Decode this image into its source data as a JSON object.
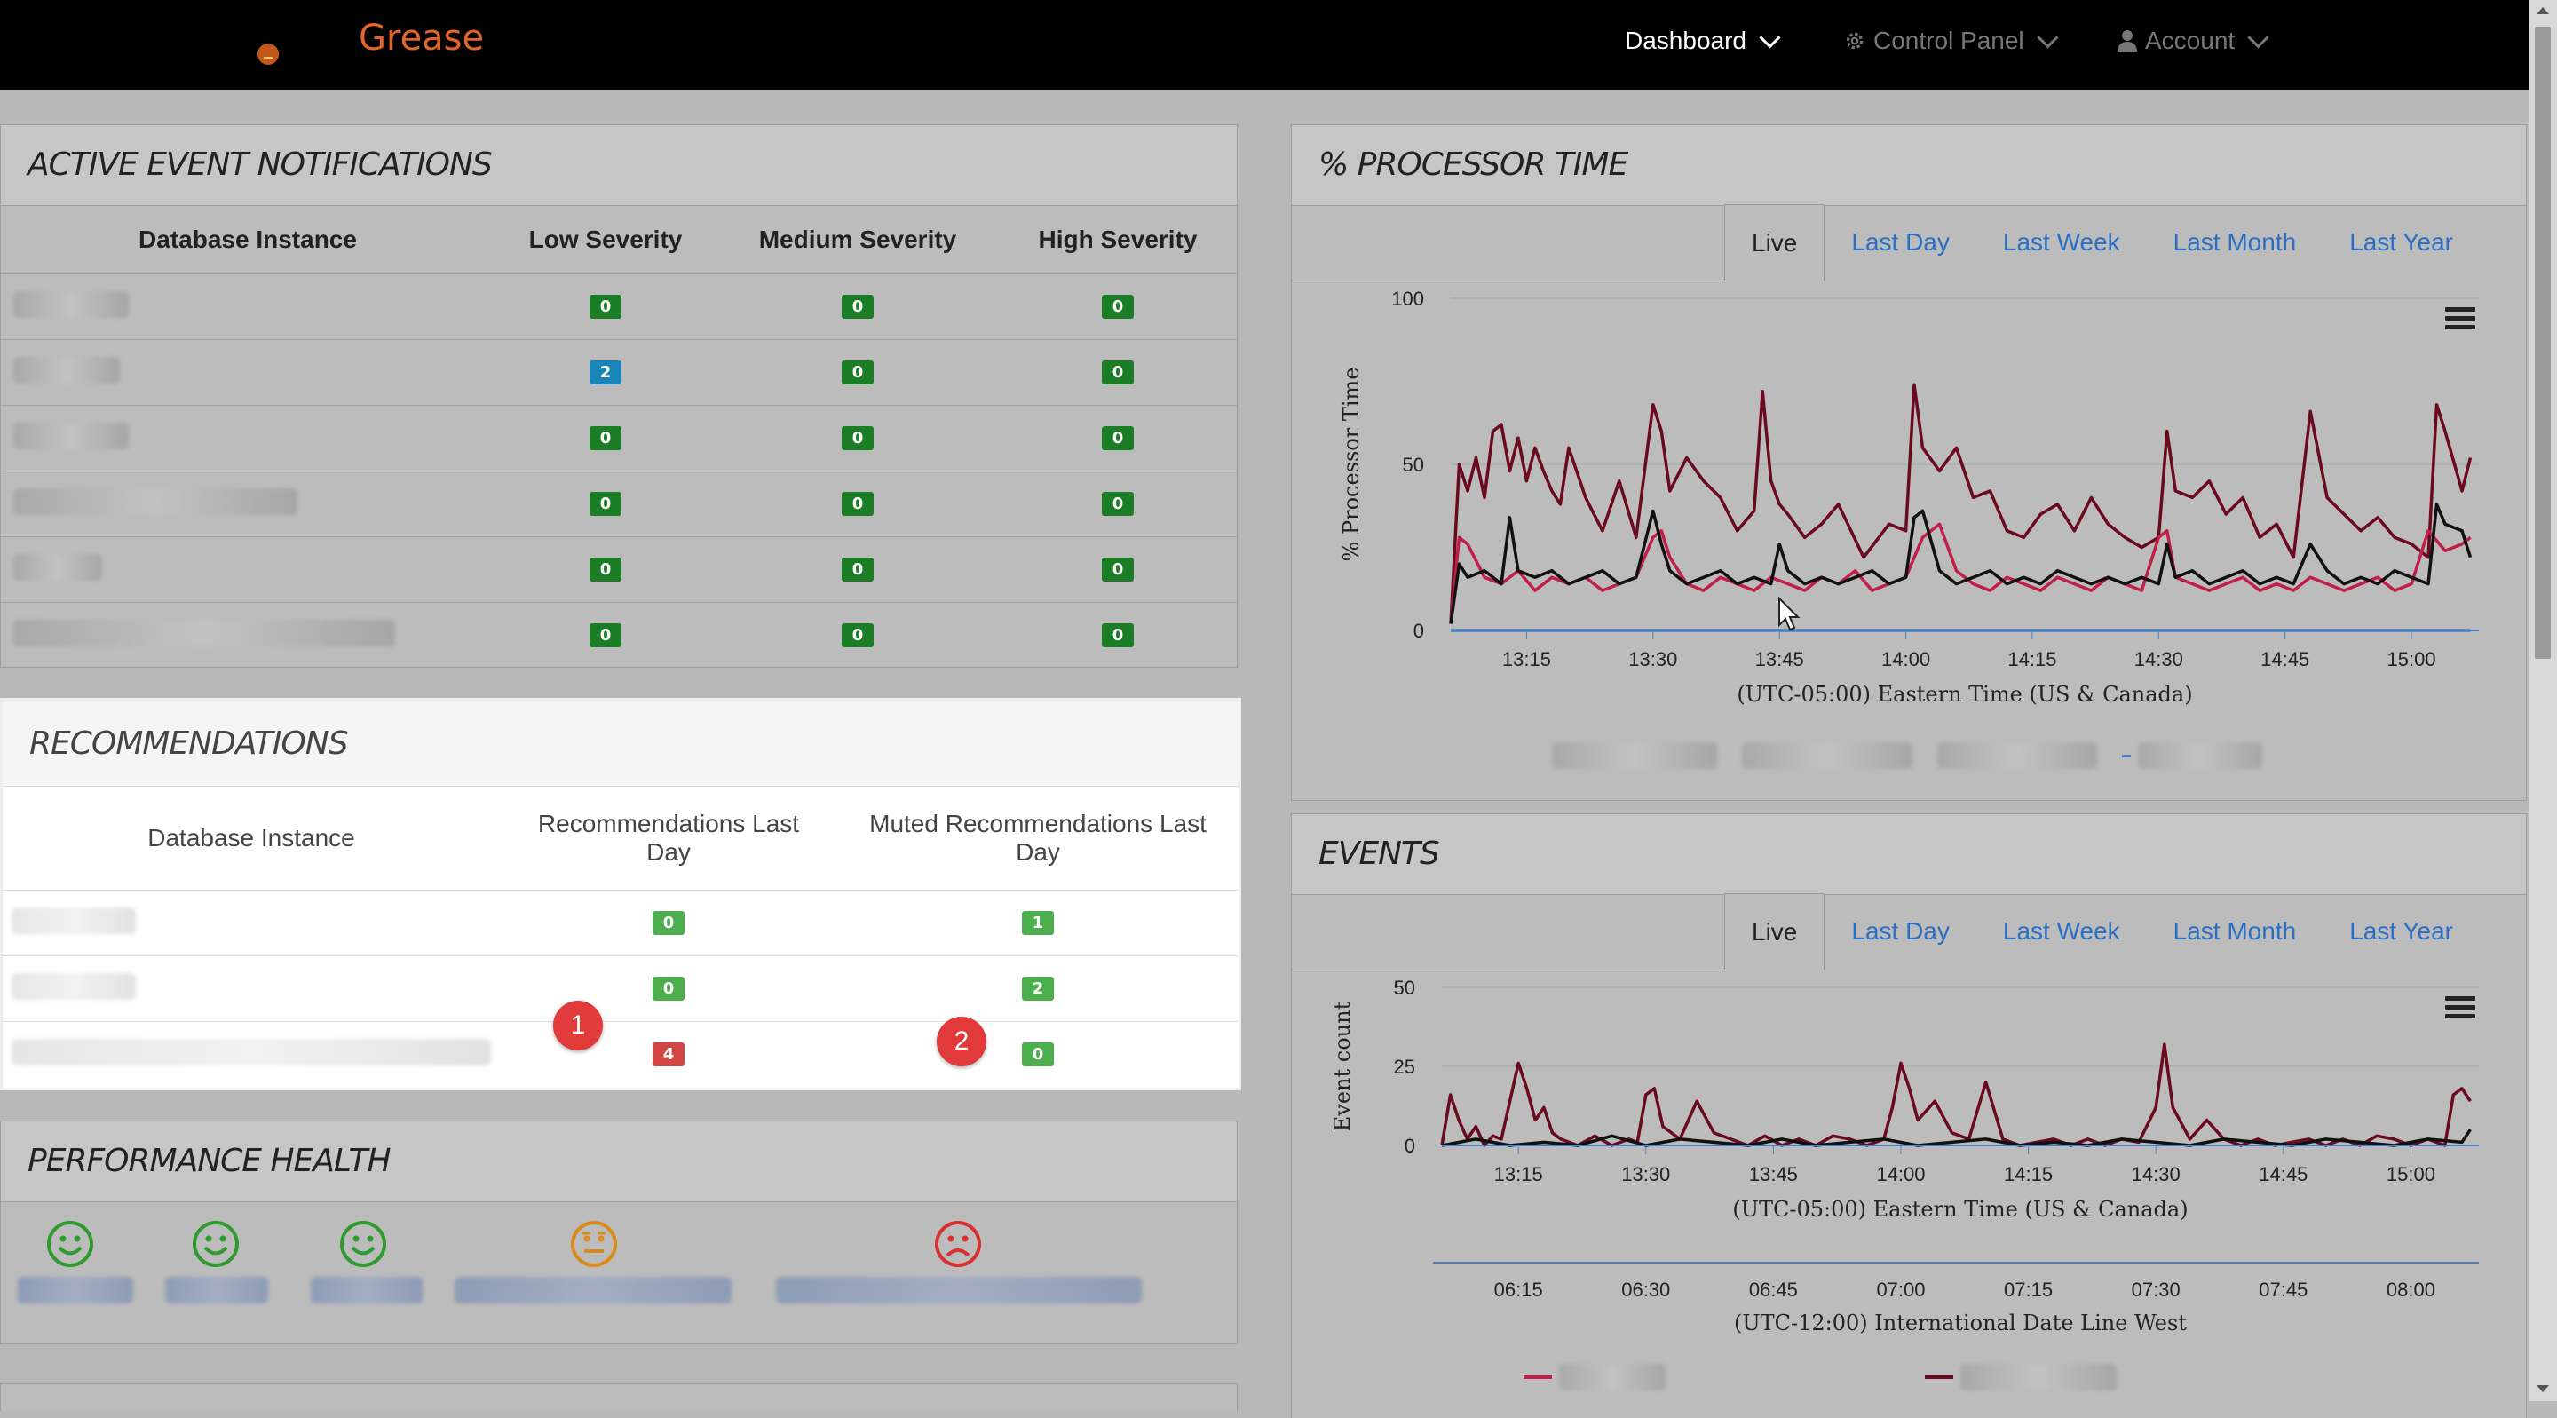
{
  "nav": {
    "brand": "Grease",
    "dashboard": "Dashboard",
    "control_panel": "Control Panel",
    "account": "Account"
  },
  "active_events": {
    "title": "ACTIVE EVENT NOTIFICATIONS",
    "columns": [
      "Database Instance",
      "Low Severity",
      "Medium Severity",
      "High Severity"
    ],
    "rows": [
      {
        "low": "0",
        "medium": "0",
        "high": "0",
        "low_color": "#1b7d25"
      },
      {
        "low": "2",
        "medium": "0",
        "high": "0",
        "low_color": "#1a85b8"
      },
      {
        "low": "0",
        "medium": "0",
        "high": "0",
        "low_color": "#1b7d25"
      },
      {
        "low": "0",
        "medium": "0",
        "high": "0",
        "low_color": "#1b7d25"
      },
      {
        "low": "0",
        "medium": "0",
        "high": "0",
        "low_color": "#1b7d25"
      },
      {
        "low": "0",
        "medium": "0",
        "high": "0",
        "low_color": "#1b7d25"
      }
    ]
  },
  "recommendations": {
    "title": "RECOMMENDATIONS",
    "columns": [
      "Database Instance",
      "Recommendations Last Day",
      "Muted Recommendations Last Day"
    ],
    "rows": [
      {
        "recs": "0",
        "muted": "1",
        "recs_color": "#4cae4c"
      },
      {
        "recs": "0",
        "muted": "2",
        "recs_color": "#4cae4c"
      },
      {
        "recs": "4",
        "muted": "0",
        "recs_color": "#d24545"
      }
    ],
    "callouts": [
      "1",
      "2"
    ]
  },
  "performance_health": {
    "title": "PERFORMANCE HEALTH",
    "instances": [
      {
        "mood": "happy",
        "color": "#2f9a2f"
      },
      {
        "mood": "happy",
        "color": "#2f9a2f"
      },
      {
        "mood": "happy",
        "color": "#2f9a2f"
      },
      {
        "mood": "neutral",
        "color": "#d98a1c"
      },
      {
        "mood": "sad",
        "color": "#d63030"
      }
    ]
  },
  "processor": {
    "title": "% PROCESSOR TIME",
    "tabs": [
      "Live",
      "Last Day",
      "Last Week",
      "Last Month",
      "Last Year"
    ],
    "active_tab": "Live"
  },
  "events": {
    "title": "EVENTS",
    "tabs": [
      "Live",
      "Last Day",
      "Last Week",
      "Last Month",
      "Last Year"
    ],
    "active_tab": "Live"
  },
  "chart_data": [
    {
      "type": "line",
      "ylabel": "% Processor Time",
      "xlabel": "(UTC-05:00) Eastern Time (US & Canada)",
      "ylim": [
        0,
        100
      ],
      "yticks": [
        "0",
        "50",
        "100"
      ],
      "xlim": [
        "13:06",
        "15:08"
      ],
      "xticks": [
        "13:15",
        "13:30",
        "13:45",
        "14:00",
        "14:15",
        "14:30",
        "14:45",
        "15:00"
      ],
      "grid": true,
      "series": [
        {
          "color": "#6b0a1e",
          "x": [
            "13:06",
            "13:07",
            "13:08",
            "13:09",
            "13:10",
            "13:11",
            "13:12",
            "13:13",
            "13:14",
            "13:15",
            "13:16",
            "13:17",
            "13:18",
            "13:19",
            "13:20",
            "13:22",
            "13:24",
            "13:26",
            "13:28",
            "13:30",
            "13:31",
            "13:32",
            "13:34",
            "13:36",
            "13:38",
            "13:40",
            "13:42",
            "13:43",
            "13:44",
            "13:45",
            "13:46",
            "13:48",
            "13:50",
            "13:52",
            "13:55",
            "13:58",
            "14:00",
            "14:01",
            "14:02",
            "14:04",
            "14:06",
            "14:08",
            "14:10",
            "14:12",
            "14:14",
            "14:16",
            "14:18",
            "14:20",
            "14:22",
            "14:24",
            "14:26",
            "14:28",
            "14:30",
            "14:31",
            "14:32",
            "14:34",
            "14:36",
            "14:38",
            "14:40",
            "14:42",
            "14:44",
            "14:46",
            "14:48",
            "14:50",
            "14:52",
            "14:54",
            "14:56",
            "14:58",
            "15:00",
            "15:02",
            "15:03",
            "15:04",
            "15:06",
            "15:07"
          ],
          "y": [
            2,
            50,
            42,
            52,
            40,
            60,
            62,
            48,
            58,
            45,
            55,
            48,
            42,
            38,
            55,
            40,
            30,
            45,
            28,
            68,
            60,
            42,
            52,
            45,
            40,
            30,
            36,
            72,
            45,
            38,
            35,
            28,
            32,
            38,
            22,
            32,
            30,
            74,
            55,
            48,
            55,
            40,
            42,
            30,
            28,
            35,
            38,
            30,
            40,
            32,
            28,
            25,
            28,
            60,
            42,
            40,
            45,
            35,
            40,
            28,
            32,
            22,
            66,
            40,
            35,
            30,
            34,
            28,
            26,
            22,
            68,
            60,
            42,
            52
          ]
        },
        {
          "color": "#c01f48",
          "x": [
            "13:06",
            "13:07",
            "13:08",
            "13:10",
            "13:12",
            "13:14",
            "13:16",
            "13:18",
            "13:20",
            "13:22",
            "13:24",
            "13:26",
            "13:28",
            "13:30",
            "13:31",
            "13:32",
            "13:34",
            "13:36",
            "13:38",
            "13:40",
            "13:42",
            "13:44",
            "13:46",
            "13:48",
            "13:50",
            "13:52",
            "13:54",
            "13:56",
            "13:58",
            "14:00",
            "14:02",
            "14:04",
            "14:06",
            "14:08",
            "14:10",
            "14:12",
            "14:14",
            "14:16",
            "14:18",
            "14:20",
            "14:22",
            "14:24",
            "14:26",
            "14:28",
            "14:30",
            "14:31",
            "14:32",
            "14:34",
            "14:36",
            "14:38",
            "14:40",
            "14:42",
            "14:44",
            "14:46",
            "14:48",
            "14:50",
            "14:52",
            "14:54",
            "14:56",
            "14:58",
            "15:00",
            "15:02",
            "15:04",
            "15:06",
            "15:07"
          ],
          "y": [
            2,
            28,
            26,
            16,
            14,
            18,
            12,
            16,
            14,
            16,
            12,
            14,
            16,
            28,
            30,
            22,
            14,
            12,
            16,
            14,
            12,
            16,
            14,
            12,
            16,
            14,
            18,
            12,
            14,
            16,
            28,
            32,
            18,
            14,
            12,
            16,
            14,
            12,
            16,
            14,
            12,
            16,
            14,
            12,
            28,
            30,
            16,
            14,
            12,
            14,
            16,
            12,
            14,
            12,
            16,
            14,
            12,
            14,
            16,
            12,
            14,
            30,
            24,
            26,
            28
          ]
        },
        {
          "color": "#111111",
          "x": [
            "13:06",
            "13:07",
            "13:08",
            "13:10",
            "13:12",
            "13:13",
            "13:14",
            "13:16",
            "13:18",
            "13:20",
            "13:22",
            "13:24",
            "13:26",
            "13:28",
            "13:30",
            "13:31",
            "13:32",
            "13:34",
            "13:36",
            "13:38",
            "13:40",
            "13:42",
            "13:44",
            "13:45",
            "13:46",
            "13:48",
            "13:50",
            "13:52",
            "13:54",
            "13:56",
            "13:58",
            "14:00",
            "14:01",
            "14:02",
            "14:04",
            "14:06",
            "14:08",
            "14:10",
            "14:12",
            "14:14",
            "14:16",
            "14:18",
            "14:20",
            "14:22",
            "14:24",
            "14:26",
            "14:28",
            "14:30",
            "14:31",
            "14:32",
            "14:34",
            "14:36",
            "14:38",
            "14:40",
            "14:42",
            "14:44",
            "14:46",
            "14:48",
            "14:50",
            "14:52",
            "14:54",
            "14:56",
            "14:58",
            "15:00",
            "15:02",
            "15:03",
            "15:04",
            "15:06",
            "15:07"
          ],
          "y": [
            2,
            20,
            16,
            18,
            14,
            34,
            18,
            16,
            18,
            14,
            16,
            18,
            14,
            16,
            36,
            26,
            18,
            14,
            16,
            18,
            14,
            16,
            14,
            26,
            18,
            14,
            16,
            14,
            16,
            18,
            14,
            16,
            34,
            36,
            18,
            14,
            16,
            18,
            14,
            16,
            14,
            18,
            16,
            14,
            16,
            14,
            16,
            14,
            26,
            16,
            18,
            14,
            16,
            18,
            14,
            16,
            14,
            26,
            18,
            14,
            16,
            14,
            18,
            16,
            14,
            38,
            32,
            30,
            22
          ]
        },
        {
          "color": "#4a7fc0",
          "x": [
            "13:06",
            "15:07"
          ],
          "y": [
            0,
            0
          ]
        }
      ]
    },
    {
      "type": "line",
      "ylabel": "Event count",
      "xlabel": "(UTC-05:00) Eastern Time (US & Canada)",
      "secondary_xlabel": "(UTC-12:00) International Date Line West",
      "secondary_xticks": [
        "06:15",
        "06:30",
        "06:45",
        "07:00",
        "07:15",
        "07:30",
        "07:45",
        "08:00"
      ],
      "ylim": [
        0,
        50
      ],
      "yticks": [
        "0",
        "25",
        "50"
      ],
      "xlim": [
        "13:06",
        "15:08"
      ],
      "xticks": [
        "13:15",
        "13:30",
        "13:45",
        "14:00",
        "14:15",
        "14:30",
        "14:45",
        "15:00"
      ],
      "grid": true,
      "series": [
        {
          "color": "#6b0a1e",
          "x": [
            "13:06",
            "13:07",
            "13:08",
            "13:09",
            "13:10",
            "13:11",
            "13:12",
            "13:13",
            "13:14",
            "13:15",
            "13:16",
            "13:17",
            "13:18",
            "13:19",
            "13:20",
            "13:22",
            "13:24",
            "13:26",
            "13:28",
            "13:29",
            "13:30",
            "13:31",
            "13:32",
            "13:34",
            "13:36",
            "13:38",
            "13:40",
            "13:42",
            "13:44",
            "13:46",
            "13:48",
            "13:50",
            "13:52",
            "13:54",
            "13:56",
            "13:58",
            "13:59",
            "14:00",
            "14:01",
            "14:02",
            "14:04",
            "14:06",
            "14:08",
            "14:10",
            "14:12",
            "14:14",
            "14:16",
            "14:18",
            "14:20",
            "14:22",
            "14:24",
            "14:26",
            "14:28",
            "14:30",
            "14:31",
            "14:32",
            "14:34",
            "14:36",
            "14:38",
            "14:40",
            "14:42",
            "14:44",
            "14:46",
            "14:48",
            "14:50",
            "14:52",
            "14:54",
            "14:56",
            "14:58",
            "15:00",
            "15:02",
            "15:04",
            "15:05",
            "15:06",
            "15:07"
          ],
          "y": [
            0,
            16,
            8,
            2,
            6,
            0,
            3,
            2,
            14,
            26,
            18,
            8,
            12,
            4,
            2,
            0,
            3,
            0,
            2,
            1,
            16,
            18,
            6,
            2,
            14,
            4,
            2,
            0,
            3,
            0,
            2,
            0,
            3,
            2,
            0,
            2,
            12,
            26,
            18,
            8,
            14,
            4,
            2,
            20,
            2,
            0,
            1,
            2,
            0,
            2,
            0,
            2,
            1,
            12,
            32,
            12,
            2,
            8,
            2,
            0,
            2,
            0,
            1,
            2,
            0,
            2,
            0,
            3,
            2,
            0,
            2,
            0,
            16,
            18,
            14
          ]
        },
        {
          "color": "#111111",
          "x": [
            "13:06",
            "13:10",
            "13:14",
            "13:18",
            "13:22",
            "13:26",
            "13:30",
            "13:34",
            "13:38",
            "13:42",
            "13:46",
            "13:50",
            "13:54",
            "13:58",
            "14:02",
            "14:06",
            "14:10",
            "14:14",
            "14:18",
            "14:22",
            "14:26",
            "14:30",
            "14:34",
            "14:38",
            "14:42",
            "14:46",
            "14:50",
            "14:54",
            "14:58",
            "15:02",
            "15:06",
            "15:07"
          ],
          "y": [
            0,
            2,
            0,
            1,
            0,
            3,
            0,
            2,
            1,
            0,
            2,
            0,
            1,
            2,
            0,
            1,
            2,
            0,
            1,
            0,
            2,
            1,
            0,
            2,
            1,
            0,
            2,
            1,
            0,
            2,
            1,
            5
          ]
        }
      ]
    }
  ]
}
